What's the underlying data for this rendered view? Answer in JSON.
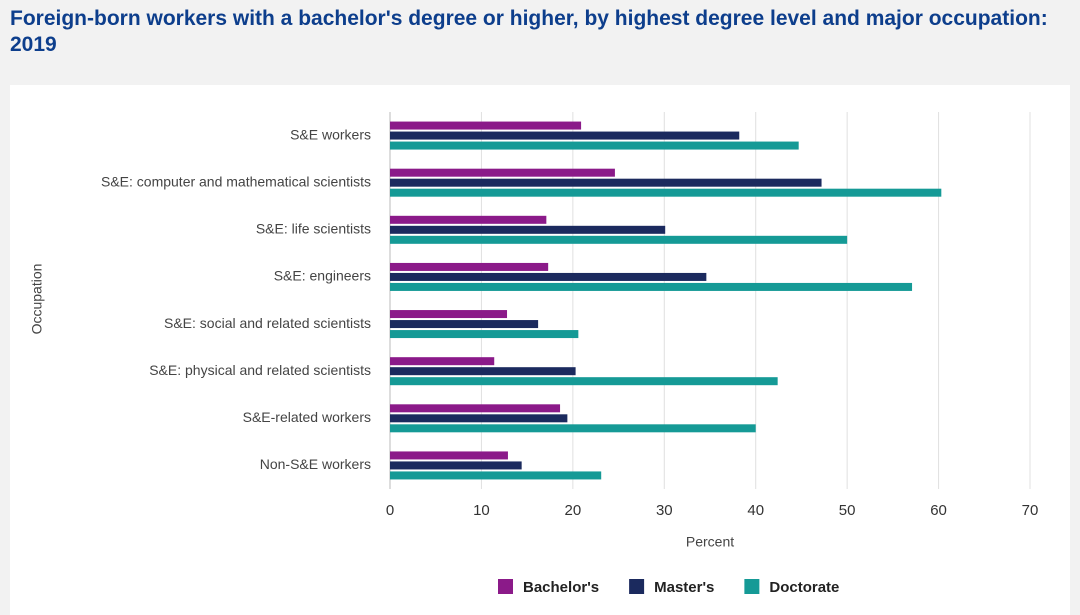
{
  "chart_data": {
    "type": "bar",
    "orientation": "horizontal",
    "title": "Foreign-born workers with a bachelor's degree or higher, by highest degree level and major occupation: 2019",
    "x_label": "Percent",
    "y_label": "Occupation",
    "categories": [
      "S&E workers",
      "S&E: computer and mathematical scientists",
      "S&E: life scientists",
      "S&E: engineers",
      "S&E: social and related scientists",
      "S&E: physical and related scientists",
      "S&E-related workers",
      "Non-S&E workers"
    ],
    "series": [
      {
        "name": "Bachelor's",
        "color": "#8b1a89",
        "values": [
          20.9,
          24.6,
          17.1,
          17.3,
          12.8,
          11.4,
          18.6,
          12.9
        ]
      },
      {
        "name": "Master's",
        "color": "#1b2a5e",
        "values": [
          38.2,
          47.2,
          30.1,
          34.6,
          16.2,
          20.3,
          19.4,
          14.4
        ]
      },
      {
        "name": "Doctorate",
        "color": "#159a96",
        "values": [
          44.7,
          60.3,
          50.0,
          57.1,
          20.6,
          42.4,
          40.0,
          23.1
        ]
      }
    ],
    "xlim": [
      0,
      70
    ],
    "xticks": [
      0,
      10,
      20,
      30,
      40,
      50,
      60,
      70
    ],
    "grid": true,
    "legend": "bottom"
  }
}
